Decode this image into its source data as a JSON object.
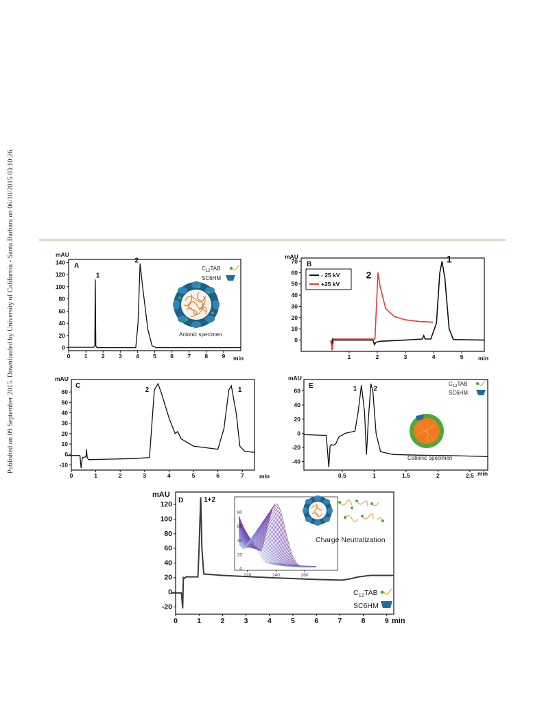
{
  "sidebar_text": "Published on 09 September 2015. Downloaded by University of California - Santa Barbara on 06/10/2015 03:10:26.",
  "legend_icons": {
    "surfactant": "C12TAB",
    "surfactant_sub": "12",
    "micelle": "SC6HM"
  },
  "chart_data": [
    {
      "id": "A",
      "type": "line",
      "panel_label": "A",
      "ylabel": "mAU",
      "xlabel": "min",
      "xlim": [
        0,
        10
      ],
      "ylim": [
        -5,
        145
      ],
      "xticks": [
        "0",
        "1",
        "2",
        "3",
        "4",
        "5",
        "6",
        "7",
        "8",
        "9"
      ],
      "yticks": [
        "0",
        "20",
        "40",
        "60",
        "80",
        "100",
        "120",
        "140"
      ],
      "series": [
        {
          "color": "#111111",
          "x": [
            0,
            1.45,
            1.52,
            1.55,
            1.58,
            1.65,
            2.5,
            3.9,
            4.03,
            4.15,
            4.3,
            4.6,
            4.85,
            5.1,
            7,
            10
          ],
          "y": [
            0.5,
            0.5,
            3,
            112,
            3,
            0,
            0,
            0,
            40,
            138,
            100,
            30,
            3,
            0,
            0,
            0
          ]
        }
      ],
      "peak_labels": [
        {
          "text": "1",
          "x": 1.7,
          "y": 115
        },
        {
          "text": "2",
          "x": 3.95,
          "y": 140
        }
      ],
      "legend_labels": [
        "C",
        "TAB",
        "SC6HM"
      ],
      "annotation": "Anionic specimen"
    },
    {
      "id": "B",
      "type": "line",
      "panel_label": "B",
      "ylabel": "mAU",
      "xlabel": "min",
      "xlim": [
        -0.7,
        5.8
      ],
      "ylim": [
        -10,
        73
      ],
      "xticks": [
        "1",
        "2",
        "3",
        "4",
        "5"
      ],
      "yticks": [
        "0",
        "10",
        "20",
        "30",
        "40",
        "50",
        "60",
        "70"
      ],
      "legend": [
        "- 25 kV",
        "+25 kV"
      ],
      "series": [
        {
          "name": "- 25 kV",
          "color": "#111111",
          "x": [
            0.35,
            0.4,
            0.42,
            0.45,
            0.6,
            1.85,
            1.9,
            1.95,
            2.1,
            3,
            3.6,
            3.65,
            3.7,
            3.9,
            4.1,
            4.22,
            4.3,
            4.4,
            4.55,
            4.7,
            5.8
          ],
          "y": [
            0,
            -3,
            1,
            0,
            0,
            0,
            -4,
            -2,
            -1,
            0,
            1,
            4,
            1,
            1,
            15,
            60,
            70,
            55,
            10,
            0.5,
            0
          ]
        },
        {
          "name": "+25 kV",
          "color": "#e03c34",
          "x": [
            0.35,
            0.4,
            0.45,
            0.5,
            1.92,
            1.97,
            2.03,
            2.1,
            2.3,
            2.6,
            3,
            3.5,
            3.98
          ],
          "y": [
            0,
            -9,
            1,
            1,
            1,
            30,
            60,
            48,
            28,
            21,
            18,
            16.5,
            16
          ]
        }
      ],
      "peak_labels": [
        {
          "text": "2",
          "x": 1.7,
          "y": 55
        },
        {
          "text": "1",
          "x": 4.55,
          "y": 69
        }
      ]
    },
    {
      "id": "C",
      "type": "line",
      "panel_label": "C",
      "ylabel": "mAU",
      "xlabel": "min",
      "xlim": [
        0,
        7.5
      ],
      "ylim": [
        -15,
        72
      ],
      "xticks": [
        "0",
        "1",
        "2",
        "3",
        "4",
        "5",
        "6",
        "7"
      ],
      "yticks": [
        "-10",
        "0",
        "10",
        "20",
        "30",
        "40",
        "50",
        "60"
      ],
      "series": [
        {
          "color": "#111111",
          "x": [
            -0.2,
            0.35,
            0.4,
            0.45,
            0.5,
            0.6,
            0.62,
            0.65,
            0.7,
            1.5,
            2.5,
            3.2,
            3.3,
            3.4,
            3.55,
            3.7,
            4,
            4.25,
            4.35,
            4.5,
            5,
            6,
            6.25,
            6.45,
            6.55,
            6.75,
            6.9,
            7.1,
            7.5
          ],
          "y": [
            -1,
            -1,
            -13,
            -3,
            -3,
            -2,
            5,
            -3,
            -5,
            -4.5,
            -4,
            -3,
            30,
            62,
            68,
            58,
            35,
            20,
            22,
            15,
            8,
            5,
            25,
            62,
            66,
            40,
            8,
            3,
            2
          ]
        }
      ],
      "peak_labels": [
        {
          "text": "2",
          "x": 3.1,
          "y": 60
        },
        {
          "text": "1",
          "x": 6.9,
          "y": 60
        }
      ]
    },
    {
      "id": "E",
      "type": "line",
      "panel_label": "E",
      "ylabel": "mAU",
      "xlabel": "min",
      "xlim": [
        -0.1,
        2.78
      ],
      "ylim": [
        -52,
        76
      ],
      "xticks": [
        "0.5",
        "1",
        "1.5",
        "2",
        "2.5"
      ],
      "yticks": [
        "-40",
        "-20",
        "0",
        "20",
        "40",
        "60"
      ],
      "series": [
        {
          "color": "#111111",
          "x": [
            -0.1,
            0.25,
            0.29,
            0.31,
            0.33,
            0.36,
            0.4,
            0.45,
            0.55,
            0.7,
            0.75,
            0.8,
            0.85,
            0.88,
            0.91,
            0.95,
            0.98,
            1.03,
            1.1,
            1.3,
            1.7,
            2.2,
            2.78
          ],
          "y": [
            -2,
            -3,
            -48,
            -18,
            -16,
            -17,
            -15,
            -5,
            0,
            3,
            30,
            68,
            30,
            -30,
            20,
            70,
            60,
            0,
            -26,
            -30,
            -31,
            -31.5,
            -33
          ]
        }
      ],
      "peak_labels": [
        {
          "text": "1",
          "x": 0.7,
          "y": 60
        },
        {
          "text": "2",
          "x": 1.02,
          "y": 60
        }
      ],
      "legend_labels": [
        "C",
        "TAB",
        "SC6HM"
      ],
      "annotation": "Cationic specimen"
    },
    {
      "id": "D",
      "type": "line",
      "panel_label": "D",
      "ylabel": "mAU",
      "xlabel": "min",
      "xlim": [
        0,
        9.3
      ],
      "ylim": [
        -30,
        137
      ],
      "xticks": [
        "0",
        "1",
        "2",
        "3",
        "4",
        "5",
        "6",
        "7",
        "8",
        "9"
      ],
      "yticks": [
        "-20",
        "0",
        "20",
        "40",
        "60",
        "80",
        "100",
        "120"
      ],
      "series": [
        {
          "color": "#3a3a3a",
          "x": [
            -0.2,
            0.25,
            0.3,
            0.33,
            0.37,
            0.45,
            0.95,
            1.0,
            1.07,
            1.12,
            1.2,
            2,
            4,
            6,
            7.1,
            7.4,
            7.8,
            8.3,
            9.3
          ],
          "y": [
            -1,
            -1,
            -22,
            20,
            19,
            21,
            21,
            60,
            130,
            60,
            25,
            23,
            20,
            17.5,
            16.5,
            18,
            21,
            23,
            23
          ]
        }
      ],
      "peak_labels": [
        {
          "text": "1+2",
          "x": 1.45,
          "y": 124
        }
      ],
      "legend_labels": [
        "C",
        "TAB",
        "SC6HM"
      ],
      "annotation": "Charge Neutralization",
      "inset": {
        "type": "line",
        "xticks": [
          "220",
          "240",
          "260"
        ],
        "yticks": [
          "0",
          "20",
          "40",
          "60",
          "80"
        ],
        "xlim": [
          212,
          282
        ],
        "ylim": [
          0,
          100
        ]
      }
    }
  ]
}
